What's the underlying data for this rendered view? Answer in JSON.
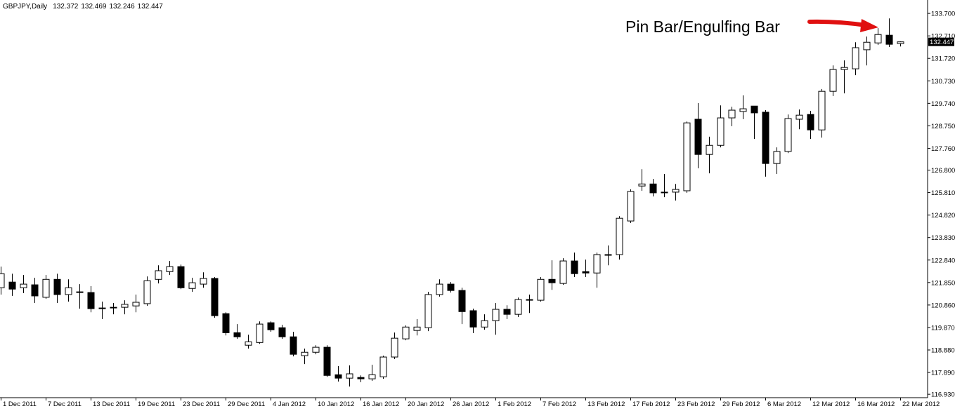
{
  "chart_data": {
    "type": "candlestick",
    "title": "GBPJPY,Daily",
    "annotation": "Pin Bar/Engulfing Bar",
    "up_color": "#ffffff",
    "down_color": "#000000",
    "categories": [
      "1 Dec 2011",
      null,
      null,
      null,
      "7 Dec 2011",
      null,
      null,
      null,
      "13 Dec 2011",
      null,
      null,
      null,
      "19 Dec 2011",
      null,
      null,
      null,
      "23 Dec 2011",
      null,
      null,
      null,
      "29 Dec 2011",
      null,
      null,
      null,
      "4 Jan 2012",
      null,
      null,
      null,
      "10 Jan 2012",
      null,
      null,
      null,
      "16 Jan 2012",
      null,
      null,
      null,
      "20 Jan 2012",
      null,
      null,
      null,
      "26 Jan 2012",
      null,
      null,
      null,
      "1 Feb 2012",
      null,
      null,
      null,
      "7 Feb 2012",
      null,
      null,
      null,
      "13 Feb 2012",
      null,
      null,
      null,
      "17 Feb 2012",
      null,
      null,
      null,
      "23 Feb 2012",
      null,
      null,
      null,
      "29 Feb 2012",
      null,
      null,
      null,
      "6 Mar 2012",
      null,
      null,
      null,
      "12 Mar 2012",
      null,
      null,
      null,
      "16 Mar 2012",
      null,
      null,
      null,
      "22 Mar 2012"
    ],
    "open": [
      121.62,
      121.87,
      121.62,
      121.75,
      121.2,
      121.99,
      121.32,
      121.44,
      121.41,
      120.73,
      120.76,
      120.76,
      120.82,
      120.92,
      121.99,
      122.33,
      122.55,
      121.59,
      121.78,
      122.03,
      120.48,
      119.64,
      119.09,
      119.21,
      120.08,
      119.86,
      119.46,
      118.63,
      118.78,
      119.0,
      117.79,
      117.64,
      117.67,
      117.61,
      117.7,
      118.57,
      119.37,
      119.74,
      119.86,
      121.32,
      121.78,
      121.5,
      120.61,
      119.89,
      120.17,
      120.67,
      120.45,
      121.1,
      121.07,
      121.99,
      121.81,
      122.8,
      122.33,
      122.27,
      123.08,
      123.08,
      124.56,
      126.1,
      126.19,
      125.83,
      125.83,
      125.89,
      129.04,
      127.49,
      127.89,
      129.1,
      129.38,
      129.62,
      129.35,
      127.09,
      127.62,
      129.04,
      129.25,
      128.57,
      130.27,
      131.23,
      131.26,
      132.1,
      132.4,
      132.74,
      132.372
    ],
    "high": [
      122.55,
      122.24,
      122.18,
      122.06,
      122.18,
      122.24,
      121.99,
      121.78,
      121.69,
      121.01,
      120.95,
      121.07,
      121.32,
      122.12,
      122.61,
      122.8,
      122.64,
      122.06,
      122.3,
      122.09,
      120.54,
      120.02,
      119.55,
      120.14,
      120.14,
      119.99,
      119.68,
      118.94,
      119.09,
      119.09,
      118.17,
      118.2,
      117.76,
      118.23,
      118.63,
      119.65,
      119.96,
      120.24,
      121.44,
      121.99,
      121.87,
      121.62,
      120.7,
      120.45,
      120.95,
      120.85,
      121.19,
      121.32,
      122.09,
      122.83,
      122.92,
      123.17,
      122.86,
      123.17,
      123.48,
      124.77,
      125.95,
      126.84,
      126.41,
      126.63,
      126.19,
      128.94,
      129.75,
      128.27,
      129.65,
      129.59,
      130.09,
      129.62,
      129.44,
      127.8,
      129.25,
      129.47,
      129.41,
      130.37,
      131.41,
      131.63,
      132.43,
      132.68,
      133.05,
      133.48,
      132.469
    ],
    "low": [
      121.32,
      121.26,
      121.38,
      120.95,
      121.13,
      120.95,
      121.01,
      120.7,
      120.54,
      120.24,
      120.45,
      120.45,
      120.54,
      120.82,
      121.81,
      122.18,
      121.56,
      121.44,
      121.62,
      120.3,
      119.52,
      119.37,
      118.94,
      119.15,
      119.68,
      119.37,
      118.6,
      118.26,
      118.69,
      117.7,
      117.49,
      117.27,
      117.46,
      117.52,
      117.61,
      118.48,
      119.31,
      119.52,
      119.71,
      121.23,
      121.41,
      120.02,
      119.62,
      119.77,
      119.55,
      120.24,
      120.33,
      120.51,
      121.01,
      121.53,
      121.75,
      122.09,
      122.09,
      121.62,
      122.61,
      122.86,
      124.47,
      125.89,
      125.64,
      125.61,
      125.46,
      125.8,
      126.88,
      126.66,
      127.8,
      128.73,
      129.04,
      128.17,
      126.51,
      126.63,
      127.55,
      128.6,
      128.17,
      128.23,
      130.06,
      130.18,
      130.98,
      131.41,
      132.31,
      132.22,
      132.246
    ],
    "close": [
      122.24,
      121.56,
      121.78,
      121.26,
      121.99,
      121.32,
      121.62,
      121.44,
      120.7,
      120.73,
      120.76,
      120.89,
      120.98,
      121.93,
      122.37,
      122.55,
      121.62,
      121.84,
      122.03,
      120.39,
      119.64,
      119.46,
      119.24,
      120.02,
      119.77,
      119.46,
      118.69,
      118.78,
      119.0,
      117.76,
      117.64,
      117.83,
      117.61,
      117.79,
      118.57,
      119.4,
      119.89,
      119.89,
      121.32,
      121.78,
      121.5,
      120.57,
      119.89,
      120.17,
      120.67,
      120.45,
      121.1,
      121.1,
      121.99,
      121.84,
      122.8,
      122.24,
      122.27,
      123.08,
      123.08,
      124.68,
      125.86,
      126.19,
      125.8,
      125.83,
      125.95,
      128.88,
      127.49,
      127.89,
      129.1,
      129.44,
      129.5,
      129.32,
      127.09,
      127.62,
      129.07,
      129.22,
      128.57,
      130.27,
      131.23,
      131.32,
      132.19,
      132.43,
      132.77,
      132.34,
      132.447
    ],
    "ylim": [
      116.78,
      134.29
    ],
    "yticks": [
      {
        "value": 133.7,
        "label": "133.700"
      },
      {
        "value": 132.71,
        "label": "132.710"
      },
      {
        "value": 131.72,
        "label": "131.720"
      },
      {
        "value": 130.73,
        "label": "130.730"
      },
      {
        "value": 129.74,
        "label": "129.740"
      },
      {
        "value": 128.75,
        "label": "128.750"
      },
      {
        "value": 127.76,
        "label": "127.760"
      },
      {
        "value": 126.8,
        "label": "126.800"
      },
      {
        "value": 125.81,
        "label": "125.810"
      },
      {
        "value": 124.82,
        "label": "124.820"
      },
      {
        "value": 123.83,
        "label": "123.830"
      },
      {
        "value": 122.84,
        "label": "122.840"
      },
      {
        "value": 121.85,
        "label": "121.850"
      },
      {
        "value": 120.86,
        "label": "120.860"
      },
      {
        "value": 119.87,
        "label": "119.870"
      },
      {
        "value": 118.88,
        "label": "118.880"
      },
      {
        "value": 117.89,
        "label": "117.890"
      },
      {
        "value": 116.93,
        "label": "116.930"
      }
    ],
    "grid": false
  }
}
